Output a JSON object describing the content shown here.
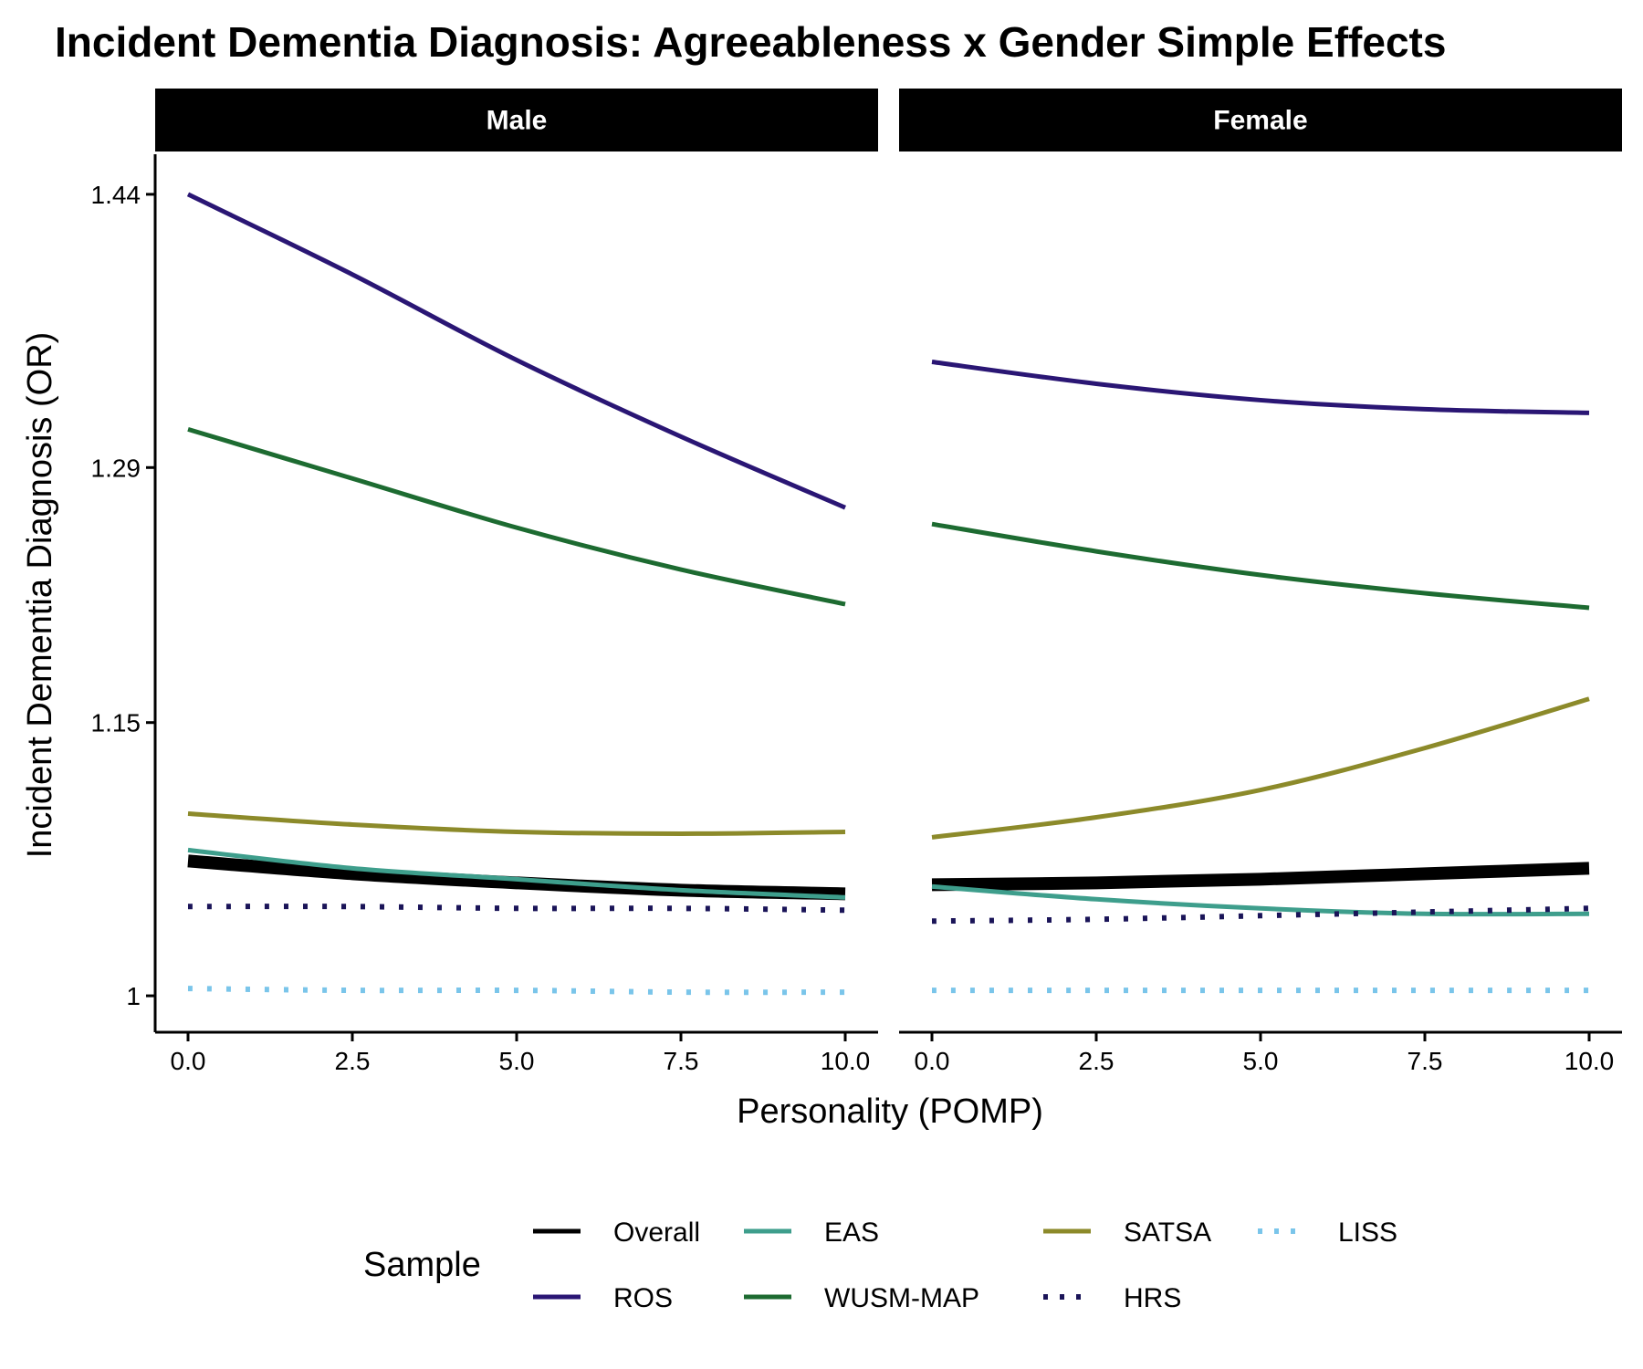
{
  "chart_data": {
    "type": "line",
    "title": "Incident Dementia Diagnosis: Agreeableness x Gender Simple Effects",
    "xlabel": "Personality (POMP)",
    "ylabel": "Incident Dementia Diagnosis (OR)",
    "xlim": [
      -0.5,
      10.5
    ],
    "ylim": [
      0.98,
      1.462
    ],
    "x_ticks": [
      0,
      2.5,
      5,
      7.5,
      10
    ],
    "x_tick_labels": [
      "0.0",
      "2.5",
      "5.0",
      "7.5",
      "10.0"
    ],
    "y_ticks": [
      1,
      1.15,
      1.29,
      1.44
    ],
    "y_tick_labels": [
      "1",
      "1.15",
      "1.29",
      "1.44"
    ],
    "legend": {
      "title": "Sample",
      "position": "bottom"
    },
    "panels": [
      {
        "name": "Male",
        "series": [
          {
            "name": "Overall",
            "color": "#000000",
            "style": "solid",
            "weight": "thick",
            "x": [
              0,
              2.5,
              5,
              7.5,
              10
            ],
            "y": [
              1.074,
              1.067,
              1.062,
              1.058,
              1.056
            ]
          },
          {
            "name": "ROS",
            "color": "#2a1674",
            "style": "solid",
            "weight": "normal",
            "x": [
              0,
              2.5,
              5,
              7.5,
              10
            ],
            "y": [
              1.44,
              1.396,
              1.349,
              1.307,
              1.268
            ]
          },
          {
            "name": "EAS",
            "color": "#3e9e8c",
            "style": "solid",
            "weight": "normal",
            "x": [
              0,
              2.5,
              5,
              7.5,
              10
            ],
            "y": [
              1.08,
              1.07,
              1.064,
              1.058,
              1.054
            ]
          },
          {
            "name": "WUSM-MAP",
            "color": "#1d6b31",
            "style": "solid",
            "weight": "normal",
            "x": [
              0,
              2.5,
              5,
              7.5,
              10
            ],
            "y": [
              1.311,
              1.284,
              1.257,
              1.234,
              1.215
            ]
          },
          {
            "name": "SATSA",
            "color": "#8c8a2a",
            "style": "solid",
            "weight": "normal",
            "x": [
              0,
              2.5,
              5,
              7.5,
              10
            ],
            "y": [
              1.1,
              1.094,
              1.09,
              1.089,
              1.09
            ]
          },
          {
            "name": "HRS",
            "color": "#1a1458",
            "style": "dotted",
            "weight": "normal",
            "x": [
              0,
              2.5,
              5,
              7.5,
              10
            ],
            "y": [
              1.049,
              1.049,
              1.048,
              1.048,
              1.047
            ]
          },
          {
            "name": "LISS",
            "color": "#7ac5ea",
            "style": "dotted",
            "weight": "normal",
            "x": [
              0,
              2.5,
              5,
              7.5,
              10
            ],
            "y": [
              1.004,
              1.003,
              1.003,
              1.002,
              1.002
            ]
          }
        ]
      },
      {
        "name": "Female",
        "series": [
          {
            "name": "Overall",
            "color": "#000000",
            "style": "solid",
            "weight": "thick",
            "x": [
              0,
              2.5,
              5,
              7.5,
              10
            ],
            "y": [
              1.061,
              1.062,
              1.064,
              1.067,
              1.07
            ]
          },
          {
            "name": "ROS",
            "color": "#2a1674",
            "style": "solid",
            "weight": "normal",
            "x": [
              0,
              2.5,
              5,
              7.5,
              10
            ],
            "y": [
              1.348,
              1.336,
              1.327,
              1.322,
              1.32
            ]
          },
          {
            "name": "EAS",
            "color": "#3e9e8c",
            "style": "solid",
            "weight": "normal",
            "x": [
              0,
              2.5,
              5,
              7.5,
              10
            ],
            "y": [
              1.06,
              1.053,
              1.048,
              1.045,
              1.045
            ]
          },
          {
            "name": "WUSM-MAP",
            "color": "#1d6b31",
            "style": "solid",
            "weight": "normal",
            "x": [
              0,
              2.5,
              5,
              7.5,
              10
            ],
            "y": [
              1.259,
              1.244,
              1.231,
              1.221,
              1.213
            ]
          },
          {
            "name": "SATSA",
            "color": "#8c8a2a",
            "style": "solid",
            "weight": "normal",
            "x": [
              0,
              2.5,
              5,
              7.5,
              10
            ],
            "y": [
              1.087,
              1.098,
              1.113,
              1.136,
              1.163
            ]
          },
          {
            "name": "HRS",
            "color": "#1a1458",
            "style": "dotted",
            "weight": "normal",
            "x": [
              0,
              2.5,
              5,
              7.5,
              10
            ],
            "y": [
              1.041,
              1.042,
              1.044,
              1.046,
              1.048
            ]
          },
          {
            "name": "LISS",
            "color": "#7ac5ea",
            "style": "dotted",
            "weight": "normal",
            "x": [
              0,
              2.5,
              5,
              7.5,
              10
            ],
            "y": [
              1.003,
              1.003,
              1.003,
              1.003,
              1.003
            ]
          }
        ]
      }
    ],
    "legend_order": [
      "Overall",
      "EAS",
      "SATSA",
      "LISS",
      "ROS",
      "WUSM-MAP",
      "HRS"
    ]
  }
}
